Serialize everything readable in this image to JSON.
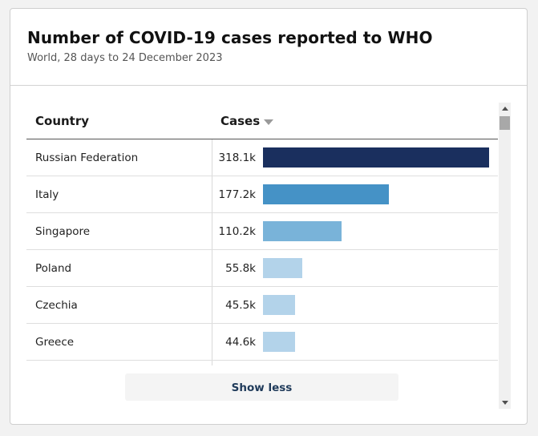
{
  "header": {
    "title": "Number of COVID-19 cases reported to WHO",
    "subtitle": "World, 28 days to 24 December 2023"
  },
  "table": {
    "columns": [
      "Country",
      "Cases"
    ],
    "sort_icon": "sort-descending-icon",
    "rows": [
      {
        "country": "Russian Federation",
        "cases_label": "318.1k",
        "cases": 318100,
        "color": "#1a2f5e"
      },
      {
        "country": "Italy",
        "cases_label": "177.2k",
        "cases": 177200,
        "color": "#4592c6"
      },
      {
        "country": "Singapore",
        "cases_label": "110.2k",
        "cases": 110200,
        "color": "#79b3d9"
      },
      {
        "country": "Poland",
        "cases_label": "55.8k",
        "cases": 55800,
        "color": "#b3d3ea"
      },
      {
        "country": "Czechia",
        "cases_label": "45.5k",
        "cases": 45500,
        "color": "#b3d3ea"
      },
      {
        "country": "Greece",
        "cases_label": "44.6k",
        "cases": 44600,
        "color": "#b3d3ea"
      }
    ]
  },
  "buttons": {
    "show_less": "Show less"
  }
}
